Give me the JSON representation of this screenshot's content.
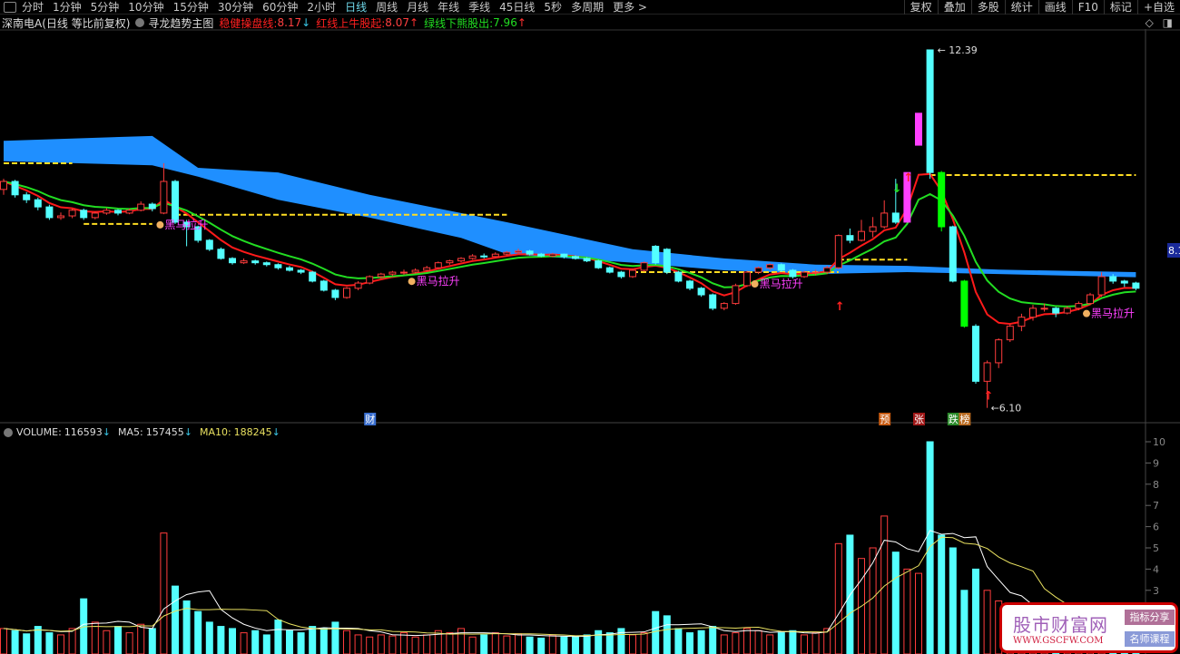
{
  "toolbar": {
    "periods": [
      "分时",
      "1分钟",
      "5分钟",
      "10分钟",
      "15分钟",
      "30分钟",
      "60分钟",
      "2小时",
      "日线",
      "周线",
      "月线",
      "年线",
      "季线",
      "45日线",
      "5秒",
      "多周期",
      "更多 >"
    ],
    "active": "日线",
    "right_buttons": [
      "复权",
      "叠加",
      "多股",
      "统计",
      "画线",
      "F10",
      "标记",
      "+自选"
    ]
  },
  "info": {
    "stock": "深南电A(日线 等比前复权)",
    "indicator": "寻龙趋势主图",
    "line1_label": "稳健操盘线:",
    "line1_value": "8.17",
    "line1_arrow": "↓",
    "line2_label": "红线上牛股起:",
    "line2_value": "8.07",
    "line2_arrow": "↑",
    "line3_label": "绿线下熊股出:",
    "line3_value": "7.96",
    "line3_arrow": "↑"
  },
  "volume_info": {
    "volume_label": "VOLUME:",
    "volume_value": "116593",
    "ma5_label": "MA5:",
    "ma5_value": "157455",
    "ma10_label": "MA10:",
    "ma10_value": "188245",
    "arrow": "↓"
  },
  "colors": {
    "up": "#ff3c3c",
    "down": "#54ffff",
    "limit": "#ff40ff",
    "green_fill": "#00ff00",
    "band": "#1f8fff",
    "red_line": "#ff1a1a",
    "green_line": "#22dd22",
    "dash": "#ffdd22",
    "vol_ma5": "#ffffff",
    "vol_ma10": "#e8e060",
    "annot": "#ff40ff"
  },
  "chart_data": {
    "type": "candlestick",
    "price_scale": "log",
    "max_label": "12.39",
    "min_label": "6.10",
    "max_price": 12.39,
    "min_price": 6.1,
    "right_price_label": "8.1",
    "candles": [
      [
        9.4,
        9.6,
        9.3,
        9.55
      ],
      [
        9.55,
        9.58,
        9.25,
        9.3
      ],
      [
        9.3,
        9.35,
        9.15,
        9.21
      ],
      [
        9.21,
        9.25,
        9.02,
        9.08
      ],
      [
        9.08,
        9.12,
        8.85,
        8.89
      ],
      [
        8.89,
        8.98,
        8.85,
        8.92
      ],
      [
        8.92,
        9.05,
        8.88,
        9.02
      ],
      [
        9.02,
        9.05,
        8.85,
        8.89
      ],
      [
        8.89,
        9.0,
        8.86,
        8.97
      ],
      [
        8.97,
        9.06,
        8.94,
        9.02
      ],
      [
        9.02,
        9.04,
        8.93,
        8.97
      ],
      [
        8.97,
        9.05,
        8.95,
        9.02
      ],
      [
        9.02,
        9.18,
        9.0,
        9.13
      ],
      [
        9.13,
        9.16,
        9.0,
        9.05
      ],
      [
        8.97,
        9.9,
        8.95,
        9.55
      ],
      [
        9.55,
        9.58,
        8.78,
        8.81
      ],
      [
        8.81,
        8.85,
        8.4,
        8.73
      ],
      [
        8.73,
        8.75,
        8.46,
        8.5
      ],
      [
        8.5,
        8.52,
        8.32,
        8.35
      ],
      [
        8.35,
        8.38,
        8.18,
        8.2
      ],
      [
        8.2,
        8.22,
        8.1,
        8.13
      ],
      [
        8.13,
        8.2,
        8.11,
        8.16
      ],
      [
        8.16,
        8.18,
        8.1,
        8.13
      ],
      [
        8.13,
        8.15,
        8.07,
        8.1
      ],
      [
        8.1,
        8.12,
        8.02,
        8.05
      ],
      [
        8.05,
        8.08,
        7.99,
        8.01
      ],
      [
        8.01,
        8.03,
        7.95,
        7.98
      ],
      [
        7.98,
        8.0,
        7.82,
        7.84
      ],
      [
        7.84,
        7.86,
        7.68,
        7.7
      ],
      [
        7.7,
        7.72,
        7.55,
        7.59
      ],
      [
        7.59,
        7.75,
        7.57,
        7.73
      ],
      [
        7.73,
        7.84,
        7.7,
        7.81
      ],
      [
        7.81,
        7.93,
        7.79,
        7.91
      ],
      [
        7.91,
        7.97,
        7.88,
        7.95
      ],
      [
        7.95,
        8.0,
        7.92,
        7.98
      ],
      [
        7.98,
        8.02,
        7.94,
        7.98
      ],
      [
        7.98,
        8.04,
        7.96,
        8.01
      ],
      [
        8.01,
        8.08,
        7.99,
        8.05
      ],
      [
        8.05,
        8.15,
        8.03,
        8.13
      ],
      [
        8.13,
        8.18,
        8.1,
        8.16
      ],
      [
        8.16,
        8.22,
        8.14,
        8.2
      ],
      [
        8.2,
        8.27,
        8.18,
        8.24
      ],
      [
        8.24,
        8.28,
        8.2,
        8.23
      ],
      [
        8.23,
        8.3,
        8.21,
        8.27
      ],
      [
        8.27,
        8.32,
        8.25,
        8.3
      ],
      [
        8.3,
        8.36,
        8.28,
        8.32
      ],
      [
        8.32,
        8.34,
        8.25,
        8.27
      ],
      [
        8.27,
        8.29,
        8.22,
        8.24
      ],
      [
        8.24,
        8.29,
        8.22,
        8.27
      ],
      [
        8.27,
        8.28,
        8.2,
        8.23
      ],
      [
        8.23,
        8.25,
        8.18,
        8.2
      ],
      [
        8.2,
        8.22,
        8.14,
        8.16
      ],
      [
        8.16,
        8.18,
        8.03,
        8.05
      ],
      [
        8.05,
        8.07,
        7.96,
        7.98
      ],
      [
        7.98,
        8.0,
        7.88,
        7.91
      ],
      [
        7.91,
        8.03,
        7.89,
        8.01
      ],
      [
        8.01,
        8.15,
        7.99,
        8.13
      ],
      [
        8.4,
        8.42,
        8.1,
        8.13
      ],
      [
        8.35,
        8.37,
        7.95,
        7.98
      ],
      [
        7.98,
        8.0,
        7.82,
        7.84
      ],
      [
        7.84,
        7.86,
        7.7,
        7.73
      ],
      [
        7.73,
        7.75,
        7.6,
        7.63
      ],
      [
        7.63,
        7.65,
        7.4,
        7.43
      ],
      [
        7.43,
        7.52,
        7.4,
        7.5
      ],
      [
        7.5,
        7.8,
        7.48,
        7.77
      ],
      [
        7.77,
        8.0,
        7.75,
        7.98
      ],
      [
        7.98,
        8.07,
        7.95,
        8.05
      ],
      [
        8.05,
        8.12,
        8.02,
        8.1
      ],
      [
        8.1,
        8.12,
        7.98,
        8.01
      ],
      [
        8.01,
        8.03,
        7.88,
        7.91
      ],
      [
        7.91,
        8.0,
        7.89,
        7.98
      ],
      [
        7.98,
        8.02,
        7.93,
        7.98
      ],
      [
        7.98,
        8.08,
        7.95,
        8.05
      ],
      [
        8.05,
        8.6,
        8.03,
        8.58
      ],
      [
        8.58,
        8.7,
        8.45,
        8.5
      ],
      [
        8.5,
        8.85,
        8.48,
        8.65
      ],
      [
        8.65,
        8.9,
        8.55,
        8.73
      ],
      [
        8.73,
        9.2,
        8.7,
        8.97
      ],
      [
        8.97,
        9.6,
        8.78,
        8.81
      ],
      [
        8.81,
        9.72,
        8.81,
        9.72
      ],
      [
        10.26,
        10.93,
        10.26,
        10.93
      ],
      [
        12.39,
        12.39,
        9.6,
        9.72
      ],
      [
        9.72,
        9.75,
        8.65,
        8.73
      ],
      [
        8.73,
        8.75,
        7.82,
        7.84
      ],
      [
        7.84,
        7.86,
        7.15,
        7.17
      ],
      [
        7.17,
        7.2,
        6.4,
        6.43
      ],
      [
        6.43,
        6.7,
        6.1,
        6.67
      ],
      [
        6.67,
        7.0,
        6.6,
        6.98
      ],
      [
        6.98,
        7.2,
        6.95,
        7.17
      ],
      [
        7.17,
        7.35,
        7.1,
        7.3
      ],
      [
        7.3,
        7.48,
        7.25,
        7.43
      ],
      [
        7.43,
        7.5,
        7.38,
        7.43
      ],
      [
        7.43,
        7.45,
        7.3,
        7.36
      ],
      [
        7.36,
        7.46,
        7.34,
        7.43
      ],
      [
        7.43,
        7.53,
        7.4,
        7.5
      ],
      [
        7.5,
        7.66,
        7.48,
        7.63
      ],
      [
        7.63,
        7.98,
        7.6,
        7.91
      ],
      [
        7.91,
        7.95,
        7.8,
        7.84
      ],
      [
        7.84,
        7.86,
        7.75,
        7.81
      ],
      [
        7.81,
        7.83,
        7.7,
        7.73
      ]
    ],
    "limit_up_candles": [
      79,
      80
    ],
    "green_candles": [
      82,
      84
    ],
    "band": {
      "index": [
        0,
        13,
        17,
        24,
        32,
        40,
        44,
        55,
        63,
        71,
        79,
        87,
        99
      ],
      "upper": [
        10.35,
        10.45,
        9.81,
        9.72,
        9.3,
        8.97,
        8.81,
        8.35,
        8.2,
        8.1,
        8.08,
        8.02,
        7.98
      ],
      "lower": [
        9.94,
        9.86,
        9.64,
        9.21,
        8.89,
        8.54,
        8.27,
        8.13,
        8.01,
        7.95,
        7.98,
        7.95,
        7.9
      ]
    },
    "levels": [
      {
        "price": 9.9,
        "from": 0,
        "to": 6
      },
      {
        "price": 8.78,
        "from": 7,
        "to": 13
      },
      {
        "price": 8.94,
        "from": 15,
        "to": 44
      },
      {
        "price": 7.98,
        "from": 55,
        "to": 73
      },
      {
        "price": 8.18,
        "from": 73,
        "to": 79
      },
      {
        "price": 9.67,
        "from": 81,
        "to": 99
      }
    ],
    "annotations": [
      {
        "text": "黑马拉升",
        "index": 14,
        "price": 8.7
      },
      {
        "text": "黑马拉升",
        "index": 36,
        "price": 7.78
      },
      {
        "text": "黑马拉升",
        "index": 66,
        "price": 7.74
      },
      {
        "text": "黑马拉升",
        "index": 95,
        "price": 7.3
      }
    ],
    "arrows": [
      {
        "type": "up",
        "index": 73,
        "price": 7.4
      },
      {
        "type": "up",
        "index": 86,
        "price": 6.2
      },
      {
        "type": "up",
        "index": 79,
        "price": 9.55
      },
      {
        "type": "down",
        "index": 78,
        "price": 9.35
      }
    ],
    "event_tags": [
      {
        "text": "财",
        "index": 32,
        "color": "#3a6fd0"
      },
      {
        "text": "预",
        "index": 77,
        "color": "#c85a10"
      },
      {
        "text": "张",
        "index": 80,
        "color": "#a01818"
      },
      {
        "text": "跌",
        "index": 83,
        "color": "#2a8a2a"
      },
      {
        "text": "榜",
        "index": 84,
        "color": "#b86a20"
      }
    ],
    "volume": [
      120000,
      110000,
      95000,
      130000,
      100000,
      90000,
      120000,
      260000,
      150000,
      110000,
      130000,
      100000,
      140000,
      120000,
      570000,
      320000,
      250000,
      200000,
      150000,
      130000,
      120000,
      100000,
      110000,
      90000,
      160000,
      110000,
      100000,
      130000,
      120000,
      150000,
      110000,
      90000,
      80000,
      90000,
      85000,
      100000,
      80000,
      90000,
      110000,
      100000,
      120000,
      80000,
      90000,
      100000,
      85000,
      95000,
      80000,
      75000,
      90000,
      80000,
      85000,
      90000,
      110000,
      100000,
      120000,
      90000,
      100000,
      200000,
      180000,
      120000,
      100000,
      110000,
      130000,
      90000,
      100000,
      120000,
      110000,
      90000,
      100000,
      110000,
      90000,
      100000,
      120000,
      520000,
      560000,
      450000,
      500000,
      650000,
      480000,
      400000,
      380000,
      1000000,
      560000,
      500000,
      300000,
      400000,
      300000,
      250000,
      200000,
      220000,
      180000,
      170000,
      160000,
      150000,
      180000,
      160000,
      230000,
      180000,
      150000,
      116593
    ],
    "volume_ticks": [
      "10",
      "9",
      "8",
      "7",
      "6",
      "5",
      "4",
      "3"
    ]
  },
  "logo": {
    "name": "股市财富网",
    "url": "WWW.GSCFW.COM",
    "tag1": "指标分享",
    "tag2": "名师课程"
  },
  "icons": [
    "diamond-icon",
    "panel-toggle-icon"
  ]
}
